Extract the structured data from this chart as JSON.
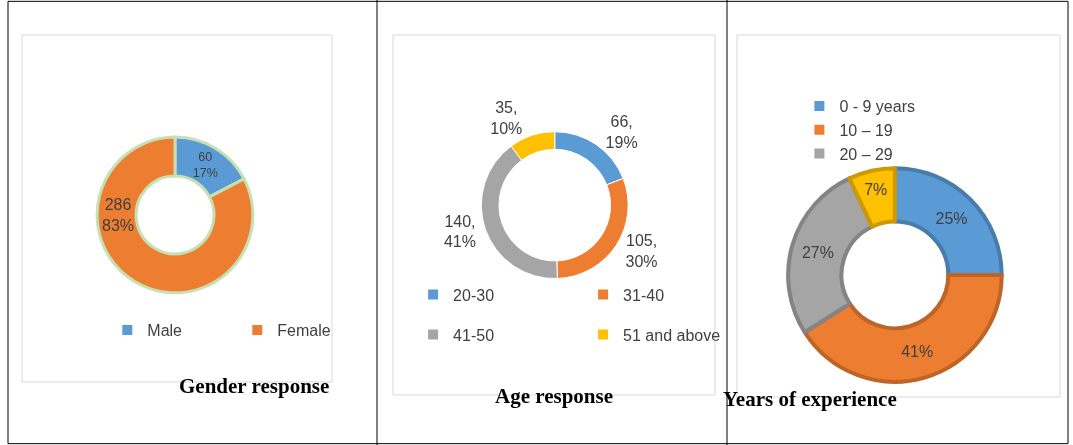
{
  "chart_data": [
    {
      "type": "donut",
      "title": "Gender response",
      "categories": [
        "Male",
        "Female"
      ],
      "values": [
        60,
        286
      ],
      "colors": [
        "#5b9bd5",
        "#ed7d31"
      ],
      "value_labels": [
        "60\n17%",
        "286\n83%"
      ],
      "legend": "bottom"
    },
    {
      "type": "donut",
      "title": "Age response",
      "categories": [
        "20-30",
        "31-40",
        "41-50",
        "51 and above"
      ],
      "values": [
        66,
        105,
        140,
        35
      ],
      "colors": [
        "#5b9bd5",
        "#ed7d31",
        "#a5a5a5",
        "#ffc000"
      ],
      "value_labels": [
        "66,\n19%",
        "105,\n30%",
        "140,\n41%",
        "35,\n10%"
      ],
      "legend": "bottom"
    },
    {
      "type": "donut",
      "title": "Years of experience",
      "categories": [
        "0 - 9 years",
        "10 – 19",
        "20 – 29",
        null
      ],
      "values": [
        25,
        41,
        27,
        7
      ],
      "colors": [
        "#5b9bd5",
        "#ed7d31",
        "#a5a5a5",
        "#ffc000"
      ],
      "value_labels": [
        "25%",
        "41%",
        "27%",
        "7%"
      ],
      "legend": "top left"
    }
  ]
}
